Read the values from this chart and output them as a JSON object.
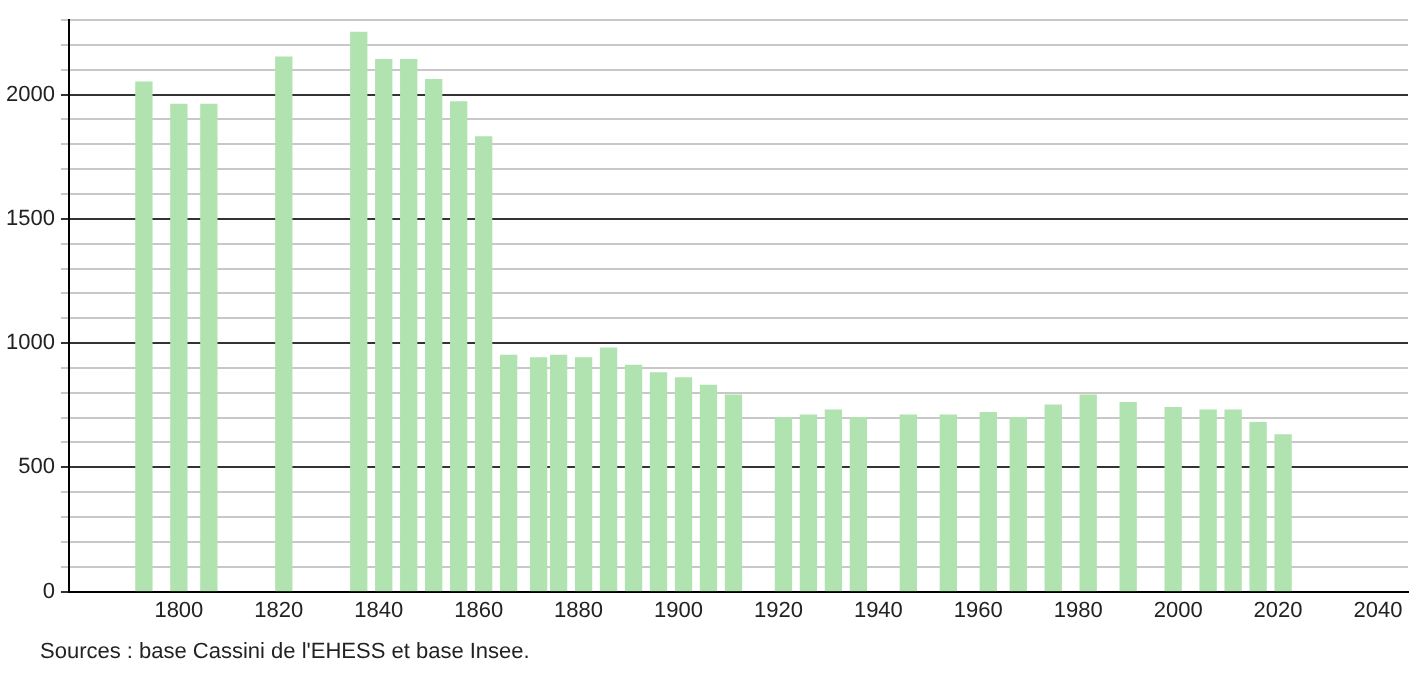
{
  "chart_data": {
    "type": "bar",
    "x": [
      1793,
      1800,
      1806,
      1821,
      1836,
      1841,
      1846,
      1851,
      1856,
      1861,
      1866,
      1872,
      1876,
      1881,
      1886,
      1891,
      1896,
      1901,
      1906,
      1911,
      1921,
      1926,
      1931,
      1936,
      1946,
      1954,
      1962,
      1968,
      1975,
      1982,
      1990,
      1999,
      2006,
      2011,
      2016,
      2021
    ],
    "values": [
      2050,
      1960,
      1960,
      2150,
      2250,
      2140,
      2140,
      2060,
      1970,
      1830,
      950,
      940,
      950,
      940,
      980,
      910,
      880,
      860,
      830,
      790,
      700,
      710,
      730,
      700,
      710,
      710,
      720,
      700,
      750,
      790,
      760,
      740,
      730,
      730,
      680,
      630
    ],
    "color": "#b0e3b0",
    "xlim": [
      1778,
      2046
    ],
    "xticks": [
      1800,
      1820,
      1840,
      1860,
      1880,
      1900,
      1920,
      1940,
      1960,
      1980,
      2000,
      2020,
      2040
    ],
    "ylim": [
      0,
      2300
    ],
    "yticks": [
      0,
      {
        "value": 100,
        "label": null
      },
      {
        "value": 200,
        "label": null
      },
      {
        "value": 300,
        "label": null
      },
      {
        "value": 400,
        "label": null
      },
      500,
      {
        "value": 600,
        "label": null
      },
      {
        "value": 700,
        "label": null
      },
      {
        "value": 800,
        "label": null
      },
      {
        "value": 900,
        "label": null
      },
      1000,
      {
        "value": 1100,
        "label": null
      },
      {
        "value": 1200,
        "label": null
      },
      {
        "value": 1300,
        "label": null
      },
      {
        "value": 1400,
        "label": null
      },
      1500,
      {
        "value": 1600,
        "label": null
      },
      {
        "value": 1700,
        "label": null
      },
      {
        "value": 1800,
        "label": null
      },
      {
        "value": 1900,
        "label": null
      },
      2000,
      {
        "value": 2100,
        "label": null
      },
      {
        "value": 2200,
        "label": null
      },
      {
        "value": 2300,
        "label": null
      }
    ],
    "grid": "y",
    "legend": false,
    "annotations": [
      "Sources : base Cassini de l'EHESS et base Insee."
    ]
  }
}
